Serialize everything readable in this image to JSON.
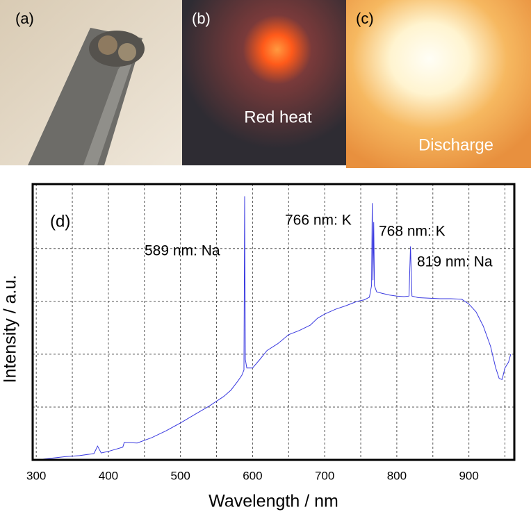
{
  "panels": [
    {
      "label": "(a)"
    },
    {
      "label": "(b)",
      "caption": "Red heat"
    },
    {
      "label": "(c)",
      "caption": "Discharge"
    }
  ],
  "chart_data": {
    "type": "line",
    "panel_label": "(d)",
    "xlabel": "Wavelength / nm",
    "ylabel": "Intensity / a.u.",
    "annotations": [
      "589 nm: Na",
      "766 nm: K",
      "768 nm: K",
      "819 nm: Na"
    ],
    "x": [
      300,
      320,
      340,
      360,
      380,
      385,
      390,
      400,
      420,
      422,
      440,
      460,
      480,
      500,
      520,
      540,
      560,
      570,
      580,
      585,
      588,
      589,
      590,
      592,
      600,
      610,
      620,
      635,
      650,
      665,
      680,
      690,
      700,
      715,
      730,
      745,
      755,
      762,
      765,
      766,
      767,
      768,
      769,
      772,
      780,
      790,
      800,
      810,
      817,
      819,
      821,
      830,
      845,
      860,
      875,
      890,
      900,
      910,
      920,
      930,
      937,
      942,
      946,
      950,
      955,
      958
    ],
    "values": [
      0.0,
      0.03,
      0.06,
      0.08,
      0.12,
      0.26,
      0.13,
      0.16,
      0.24,
      0.33,
      0.32,
      0.42,
      0.55,
      0.7,
      0.86,
      1.02,
      1.2,
      1.32,
      1.5,
      1.6,
      1.7,
      4.99,
      1.9,
      1.74,
      1.74,
      1.9,
      2.07,
      2.2,
      2.37,
      2.45,
      2.55,
      2.68,
      2.76,
      2.85,
      2.92,
      3.0,
      3.03,
      3.08,
      3.3,
      4.86,
      3.4,
      4.5,
      3.3,
      3.18,
      3.15,
      3.12,
      3.1,
      3.09,
      3.1,
      4.04,
      3.1,
      3.07,
      3.06,
      3.05,
      3.05,
      3.04,
      2.95,
      2.8,
      2.53,
      2.15,
      1.75,
      1.54,
      1.52,
      1.74,
      1.85,
      2.0
    ],
    "color": "#3a3ae0",
    "xlim": [
      295,
      963
    ],
    "ylim": [
      0,
      5.22
    ],
    "xticks": [
      300,
      400,
      500,
      600,
      700,
      800,
      900
    ],
    "xminor": [
      350,
      450,
      550,
      650,
      750,
      850,
      950
    ],
    "yticks": [
      1,
      2,
      3,
      4
    ],
    "grid": true
  }
}
